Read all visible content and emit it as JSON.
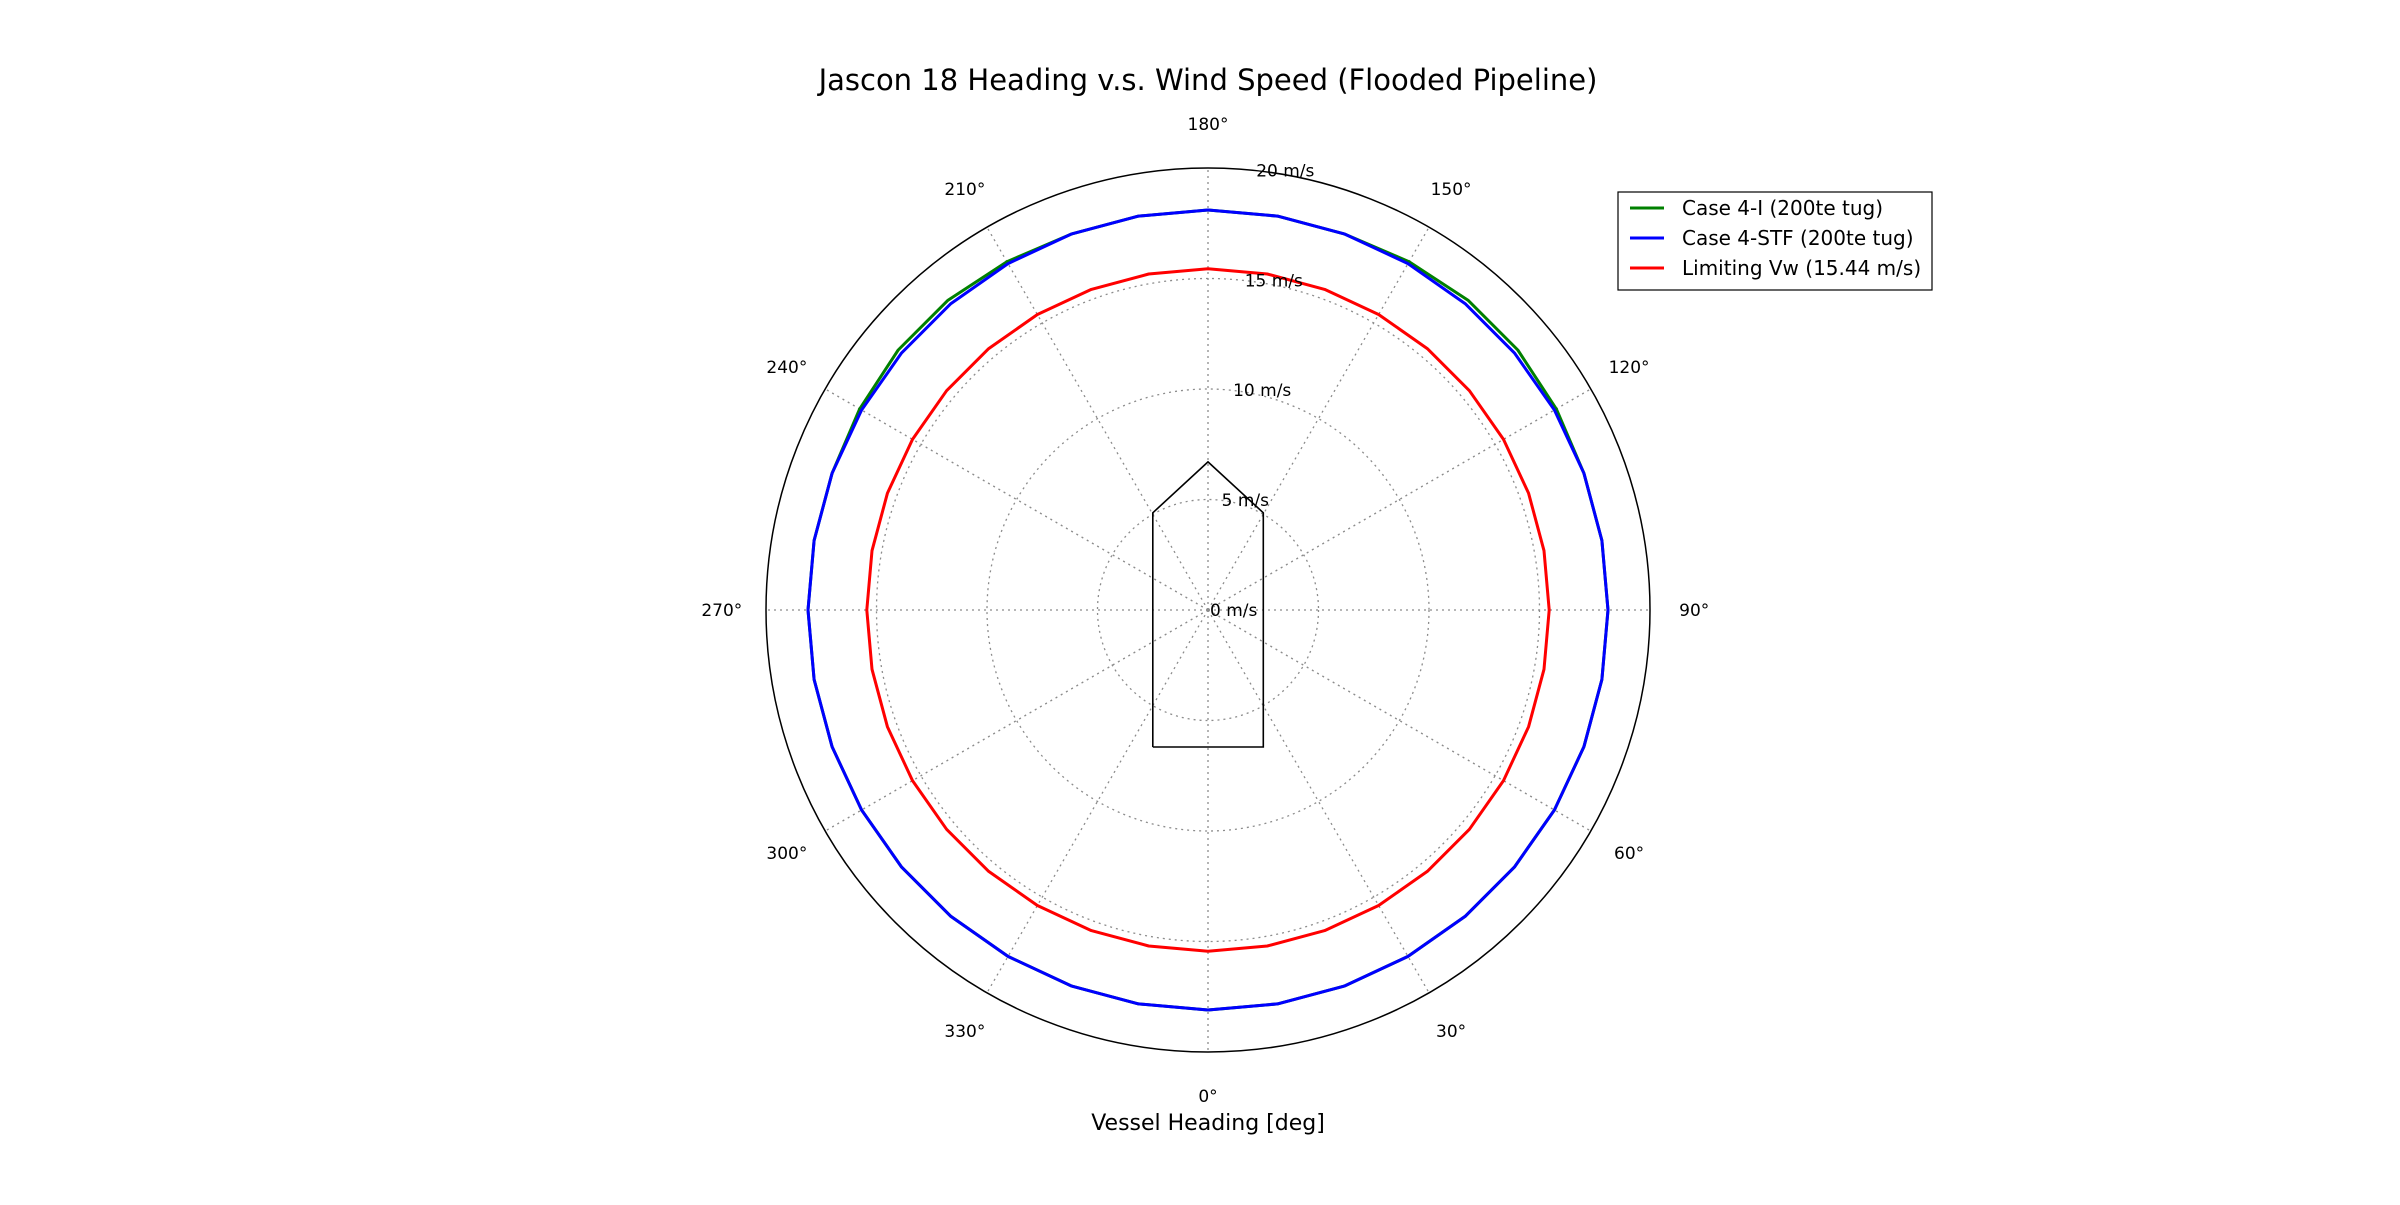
{
  "chart_data": {
    "type": "line",
    "projection": "polar",
    "title": "Jascon 18 Heading v.s. Wind Speed (Flooded Pipeline)",
    "xlabel": "Vessel Heading [deg]",
    "theta_zero_location": "bottom",
    "theta_direction": "counterclockwise",
    "theta_ticks": [
      0,
      30,
      60,
      90,
      120,
      150,
      180,
      210,
      240,
      270,
      300,
      330
    ],
    "theta_tick_labels": [
      "0°",
      "30°",
      "60°",
      "90°",
      "120°",
      "150°",
      "180°",
      "210°",
      "240°",
      "270°",
      "300°",
      "330°"
    ],
    "r_ticks": [
      0,
      5,
      10,
      15,
      20
    ],
    "r_tick_labels": [
      "0 m/s",
      "5 m/s",
      "10 m/s",
      "15 m/s",
      "20 m/s"
    ],
    "rlim": [
      0,
      20
    ],
    "grid": true,
    "legend_position": "top-right",
    "theta": [
      0,
      10,
      20,
      30,
      40,
      50,
      60,
      70,
      80,
      90,
      100,
      110,
      120,
      130,
      140,
      150,
      160,
      170,
      180,
      190,
      200,
      210,
      220,
      230,
      240,
      250,
      260,
      270,
      280,
      290,
      300,
      310,
      320,
      330,
      340,
      350,
      360
    ],
    "series": [
      {
        "name": "Case 4-I (200te tug)",
        "color": "#008000",
        "values": [
          18.1,
          18.1,
          18.1,
          18.1,
          18.1,
          18.1,
          18.1,
          18.1,
          18.1,
          18.1,
          18.1,
          18.1,
          18.2,
          18.3,
          18.3,
          18.2,
          18.1,
          18.1,
          18.1,
          18.1,
          18.1,
          18.2,
          18.3,
          18.3,
          18.2,
          18.1,
          18.1,
          18.1,
          18.1,
          18.1,
          18.1,
          18.1,
          18.1,
          18.1,
          18.1,
          18.1,
          18.1
        ]
      },
      {
        "name": "Case 4-STF (200te tug)",
        "color": "#0000ff",
        "values": [
          18.1,
          18.1,
          18.1,
          18.1,
          18.1,
          18.1,
          18.1,
          18.1,
          18.1,
          18.1,
          18.1,
          18.1,
          18.1,
          18.1,
          18.1,
          18.1,
          18.1,
          18.1,
          18.1,
          18.1,
          18.1,
          18.1,
          18.1,
          18.1,
          18.1,
          18.1,
          18.1,
          18.1,
          18.1,
          18.1,
          18.1,
          18.1,
          18.1,
          18.1,
          18.1,
          18.1,
          18.1
        ]
      },
      {
        "name": "Limiting Vw (15.44 m/s)",
        "color": "#ff0000",
        "values": [
          15.44,
          15.44,
          15.44,
          15.44,
          15.44,
          15.44,
          15.44,
          15.44,
          15.44,
          15.44,
          15.44,
          15.44,
          15.44,
          15.44,
          15.44,
          15.44,
          15.44,
          15.44,
          15.44,
          15.44,
          15.44,
          15.44,
          15.44,
          15.44,
          15.44,
          15.44,
          15.44,
          15.44,
          15.44,
          15.44,
          15.44,
          15.44,
          15.44,
          15.44,
          15.44,
          15.44,
          15.44
        ]
      }
    ],
    "annotations": [
      {
        "type": "vessel-outline",
        "color": "#000000",
        "points_xy_mps": [
          [
            -2.5,
            -6.2
          ],
          [
            2.5,
            -6.2
          ],
          [
            2.5,
            4.4
          ],
          [
            0,
            6.7
          ],
          [
            -2.5,
            4.4
          ],
          [
            -2.5,
            -6.2
          ]
        ]
      }
    ]
  }
}
